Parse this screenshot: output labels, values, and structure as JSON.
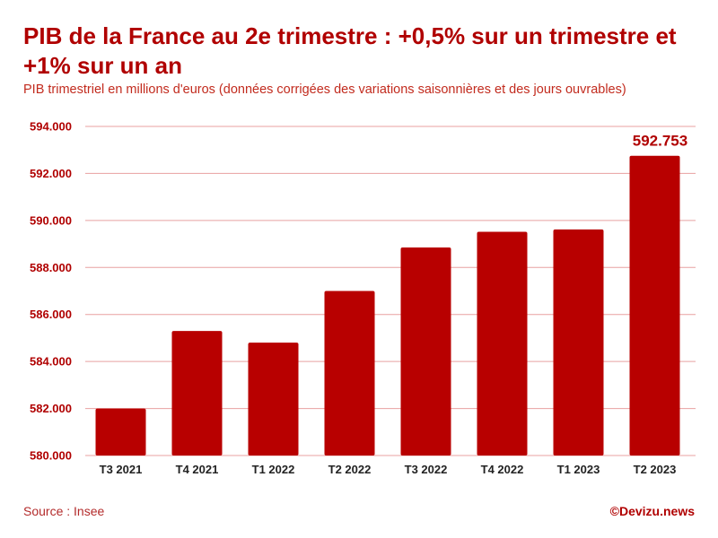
{
  "header": {
    "title": "PIB de la France au 2e trimestre : +0,5% sur un trimestre et +1% sur un an",
    "subtitle": "PIB trimestriel en millions d'euros (données corrigées des variations saisonnières et des jours ouvrables)"
  },
  "footer": {
    "source": "Source : Insee",
    "credit": "©Devizu.news"
  },
  "colors": {
    "bar": "#b80000",
    "accent": "#b00000",
    "grid": "#e8a0a0"
  },
  "chart_data": {
    "type": "bar",
    "title": "PIB de la France au 2e trimestre : +0,5% sur un trimestre et +1% sur un an",
    "subtitle": "PIB trimestriel en millions d'euros (données corrigées des variations saisonnières et des jours ouvrables)",
    "xlabel": "",
    "ylabel": "",
    "categories": [
      "T3 2021",
      "T4 2021",
      "T1 2022",
      "T2 2022",
      "T3 2022",
      "T4 2022",
      "T1 2023",
      "T2 2023"
    ],
    "values": [
      582000,
      585300,
      584800,
      587000,
      588850,
      589520,
      589620,
      592753
    ],
    "ylim": [
      580000,
      594000
    ],
    "yticks": [
      580000,
      582000,
      584000,
      586000,
      588000,
      590000,
      592000,
      594000
    ],
    "ytick_labels": [
      "580.000",
      "582.000",
      "584.000",
      "586.000",
      "588.000",
      "590.000",
      "592.000",
      "594.000"
    ],
    "data_labels": [
      {
        "category": "T2 2023",
        "label": "592.753"
      }
    ],
    "grid": true,
    "legend": "none"
  }
}
